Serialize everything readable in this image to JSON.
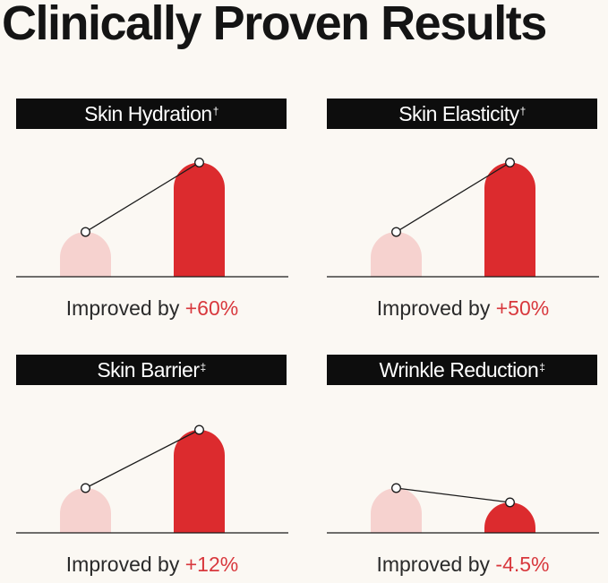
{
  "title": "Clinically Proven Results",
  "colors": {
    "baseline": "#f6d2cf",
    "result": "#dc2b2e",
    "header_bg": "#0d0d0d",
    "value_text": "#d8383d"
  },
  "chart_data": [
    {
      "type": "bar",
      "title": "Skin Hydration",
      "title_mark": "†",
      "bars": [
        {
          "role": "baseline",
          "value": 1.0
        },
        {
          "role": "result",
          "value": 2.55
        }
      ],
      "caption_prefix": "Improved by",
      "caption_value": "+60%"
    },
    {
      "type": "bar",
      "title": "Skin Elasticity",
      "title_mark": "†",
      "bars": [
        {
          "role": "baseline",
          "value": 1.0
        },
        {
          "role": "result",
          "value": 2.55
        }
      ],
      "caption_prefix": "Improved by",
      "caption_value": "+50%"
    },
    {
      "type": "bar",
      "title": "Skin Barrier",
      "title_mark": "‡",
      "bars": [
        {
          "role": "baseline",
          "value": 1.0
        },
        {
          "role": "result",
          "value": 2.3
        }
      ],
      "caption_prefix": "Improved by",
      "caption_value": "+12%"
    },
    {
      "type": "bar",
      "title": "Wrinkle Reduction",
      "title_mark": "‡",
      "bars": [
        {
          "role": "baseline",
          "value": 1.0
        },
        {
          "role": "result",
          "value": 0.68
        }
      ],
      "caption_prefix": "Improved by",
      "caption_value": "-4.5%"
    }
  ]
}
